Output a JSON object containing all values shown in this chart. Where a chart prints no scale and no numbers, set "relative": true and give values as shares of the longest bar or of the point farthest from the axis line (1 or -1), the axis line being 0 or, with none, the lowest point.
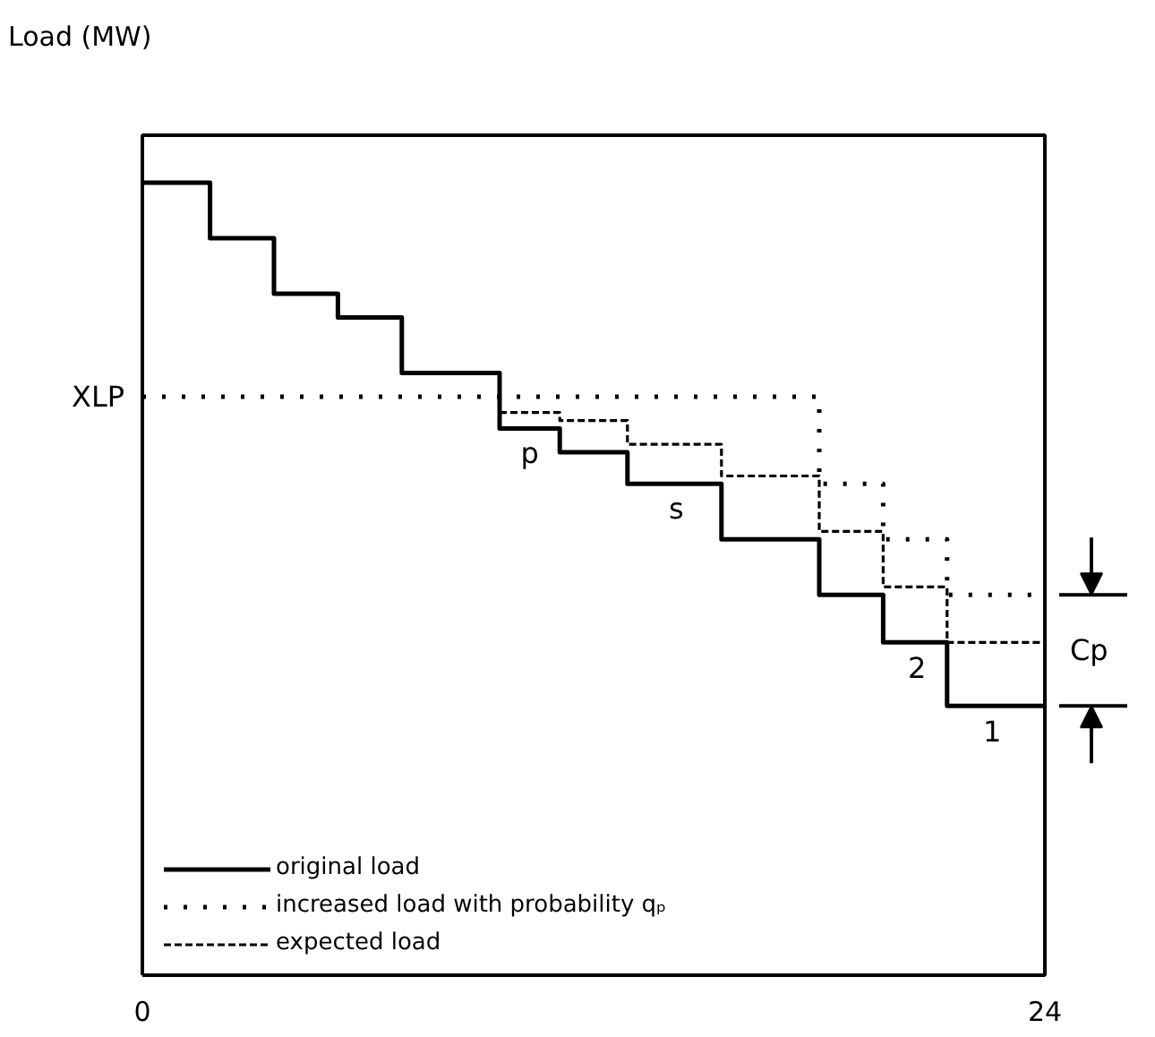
{
  "chart_data": {
    "type": "step",
    "ylabel": "Load (MW)",
    "relative": true,
    "xlim": [
      0,
      24
    ],
    "xticks": [
      0,
      24
    ],
    "legend": "bottom left",
    "tick_labels": "x",
    "series": [
      {
        "name": "original load",
        "color": "#000000",
        "line_style": "solid",
        "x": [
          0,
          1.8,
          3.5,
          5.2,
          6.9,
          9.5,
          11.1,
          12.9,
          15.4,
          18,
          19.7,
          21.4,
          24
        ],
        "values": [
          1,
          0.93,
          0.86,
          0.83,
          0.76,
          0.69,
          0.66,
          0.62,
          0.55,
          0.48,
          0.42,
          0.34,
          0.34
        ]
      },
      {
        "name": "increased load with probability qₚ",
        "color": "#000000",
        "line_style": "dotted",
        "x": [
          0,
          18,
          19.7,
          21.4,
          24
        ],
        "values": [
          0.73,
          0.62,
          0.55,
          0.48,
          0.48
        ]
      },
      {
        "name": "expected load",
        "color": "#000000",
        "line_style": "dashed",
        "x": [
          9.5,
          11.1,
          12.9,
          15.4,
          18,
          19.7,
          21.4,
          24
        ],
        "values": [
          0.71,
          0.7,
          0.67,
          0.63,
          0.56,
          0.49,
          0.42,
          0.42
        ]
      }
    ],
    "annotations": [
      {
        "text": "XLP",
        "x": 0,
        "y": 0.73
      },
      {
        "text": "Cp",
        "x": 24,
        "y": 0.41
      },
      {
        "text": "p",
        "x": 10.3,
        "y": 0.69
      },
      {
        "text": "s",
        "x": 14.2,
        "y": 0.62
      },
      {
        "text": "2",
        "x": 20.6,
        "y": 0.42
      },
      {
        "text": "1",
        "x": 22.6,
        "y": 0.34
      }
    ]
  }
}
